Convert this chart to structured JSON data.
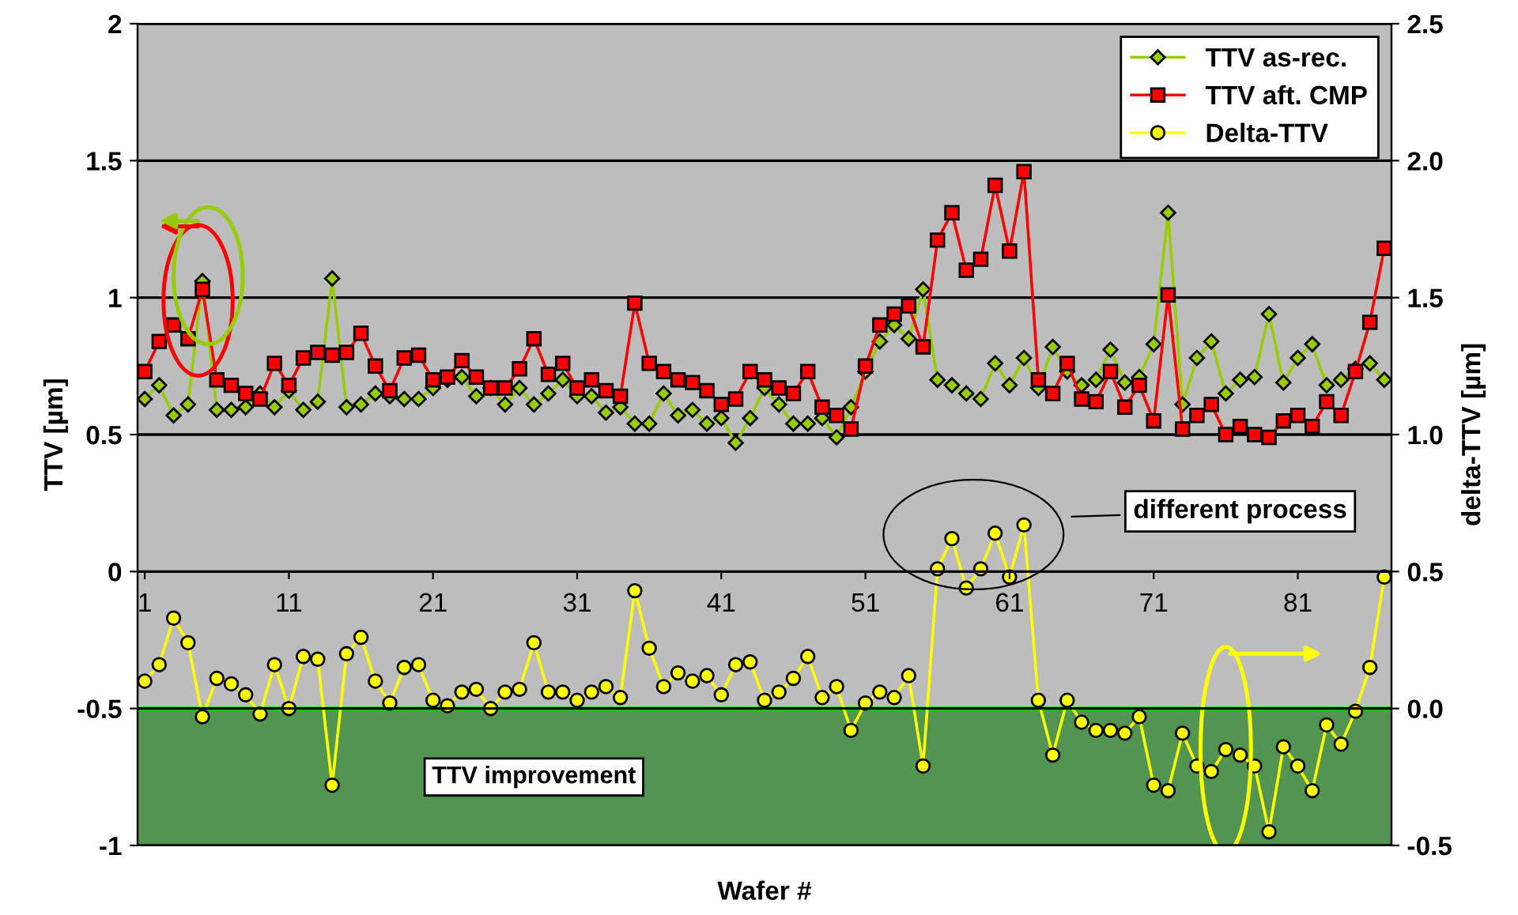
{
  "chart_data": {
    "type": "line",
    "xlabel": "Wafer #",
    "ylabel": "TTV [µm]",
    "y2label": "delta-TTV [µm]",
    "x": [
      1,
      2,
      3,
      4,
      5,
      6,
      7,
      8,
      9,
      10,
      11,
      12,
      13,
      14,
      15,
      16,
      17,
      18,
      19,
      20,
      21,
      22,
      23,
      24,
      25,
      26,
      27,
      28,
      29,
      30,
      31,
      32,
      33,
      34,
      35,
      36,
      37,
      38,
      39,
      40,
      41,
      42,
      43,
      44,
      45,
      46,
      47,
      48,
      49,
      50,
      51,
      52,
      53,
      54,
      55,
      56,
      57,
      58,
      59,
      60,
      61,
      62,
      63,
      64,
      65,
      66,
      67,
      68,
      69,
      70,
      71,
      72,
      73,
      74,
      75,
      76,
      77,
      78,
      79,
      80,
      81,
      82,
      83,
      84,
      85,
      86,
      87
    ],
    "series": [
      {
        "name": "TTV as-rec.",
        "color": "#99cc00",
        "marker": "diamond",
        "values": [
          0.63,
          0.68,
          0.57,
          0.61,
          1.06,
          0.59,
          0.59,
          0.6,
          0.65,
          0.6,
          0.66,
          0.59,
          0.62,
          1.07,
          0.6,
          0.61,
          0.65,
          0.64,
          0.63,
          0.63,
          0.67,
          0.7,
          0.71,
          0.64,
          0.67,
          0.61,
          0.67,
          0.61,
          0.65,
          0.7,
          0.64,
          0.64,
          0.58,
          0.6,
          0.54,
          0.54,
          0.65,
          0.57,
          0.59,
          0.54,
          0.56,
          0.47,
          0.56,
          0.67,
          0.61,
          0.54,
          0.54,
          0.56,
          0.49,
          0.6,
          0.73,
          0.84,
          0.9,
          0.85,
          1.03,
          0.7,
          0.68,
          0.65,
          0.63,
          0.76,
          0.68,
          0.78,
          0.67,
          0.82,
          0.73,
          0.68,
          0.7,
          0.81,
          0.69,
          0.71,
          0.83,
          1.31,
          0.61,
          0.78,
          0.84,
          0.65,
          0.7,
          0.71,
          0.94,
          0.69,
          0.78,
          0.83,
          0.68,
          0.7,
          0.74,
          0.76,
          0.7
        ]
      },
      {
        "name": "TTV aft. CMP",
        "color": "#ff0000",
        "marker": "square",
        "values": [
          0.73,
          0.84,
          0.9,
          0.85,
          1.03,
          0.7,
          0.68,
          0.65,
          0.63,
          0.76,
          0.68,
          0.78,
          0.8,
          0.79,
          0.8,
          0.87,
          0.75,
          0.66,
          0.78,
          0.79,
          0.7,
          0.71,
          0.77,
          0.71,
          0.67,
          0.67,
          0.74,
          0.85,
          0.72,
          0.76,
          0.67,
          0.7,
          0.66,
          0.64,
          0.98,
          0.76,
          0.73,
          0.7,
          0.69,
          0.66,
          0.61,
          0.63,
          0.73,
          0.7,
          0.67,
          0.65,
          0.73,
          0.6,
          0.57,
          0.52,
          0.75,
          0.9,
          0.94,
          0.97,
          0.82,
          1.21,
          1.31,
          1.1,
          1.14,
          1.41,
          1.17,
          1.46,
          0.7,
          0.65,
          0.76,
          0.63,
          0.62,
          0.73,
          0.6,
          0.68,
          0.55,
          1.01,
          0.52,
          0.57,
          0.61,
          0.5,
          0.53,
          0.5,
          0.49,
          0.55,
          0.57,
          0.53,
          0.62,
          0.57,
          0.73,
          0.91,
          1.18
        ]
      },
      {
        "name": "Delta-TTV",
        "color": "#ffff00",
        "marker": "circle",
        "axis": "y2",
        "values": [
          0.1,
          0.16,
          0.33,
          0.24,
          -0.03,
          0.11,
          0.09,
          0.05,
          -0.02,
          0.16,
          0.0,
          0.19,
          0.18,
          -0.28,
          0.2,
          0.26,
          0.1,
          0.02,
          0.15,
          0.16,
          0.03,
          0.01,
          0.06,
          0.07,
          0.0,
          0.06,
          0.07,
          0.24,
          0.06,
          0.06,
          0.03,
          0.06,
          0.08,
          0.04,
          0.43,
          0.22,
          0.08,
          0.13,
          0.1,
          0.12,
          0.05,
          0.16,
          0.17,
          0.03,
          0.06,
          0.11,
          0.19,
          0.04,
          0.08,
          -0.08,
          0.02,
          0.06,
          0.04,
          0.12,
          -0.21,
          0.51,
          0.62,
          0.44,
          0.51,
          0.64,
          0.48,
          0.67,
          0.03,
          -0.17,
          0.03,
          -0.05,
          -0.08,
          -0.08,
          -0.09,
          -0.03,
          -0.28,
          -0.3,
          -0.09,
          -0.21,
          -0.23,
          -0.15,
          -0.17,
          -0.21,
          -0.45,
          -0.14,
          -0.21,
          -0.3,
          -0.06,
          -0.13,
          -0.01,
          0.15,
          0.48
        ]
      }
    ],
    "xlim": [
      0.5,
      87.5
    ],
    "xticks": [
      1,
      11,
      21,
      31,
      41,
      51,
      61,
      71,
      81
    ],
    "ylim": [
      -1,
      2
    ],
    "yticks": [
      -1,
      -0.5,
      0,
      0.5,
      1,
      1.5,
      2
    ],
    "y2lim": [
      -0.5,
      2.5
    ],
    "y2ticks": [
      {
        "value": -0.5,
        "label": "-0.5"
      },
      {
        "value": 0,
        "label": "0.0"
      },
      {
        "value": 0.5,
        "label": "0.5"
      },
      {
        "value": 1,
        "label": "1.0"
      },
      {
        "value": 1.5,
        "label": "1.5"
      },
      {
        "value": 2,
        "label": "2.0"
      },
      {
        "value": 2.5,
        "label": "2.5"
      }
    ],
    "bands": [
      {
        "axis": "y2",
        "from": -0.5,
        "to": 0,
        "label": "TTV improvement",
        "color": "#3f8f3f"
      }
    ],
    "ref_lines": [
      {
        "axis": "y2",
        "value": 0,
        "color": "#00ee00"
      }
    ],
    "annotations": [
      "different process"
    ],
    "grid": "y",
    "legend": "top right",
    "line_style": "solid"
  }
}
